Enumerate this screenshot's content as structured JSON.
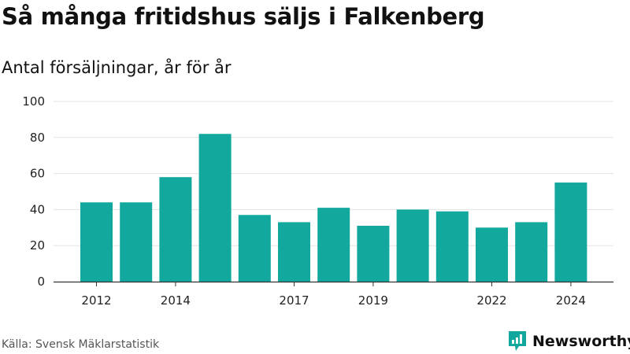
{
  "title": "Så många fritidshus säljs i Falkenberg",
  "subtitle": "Antal försäljningar, år för år",
  "source": "Källa: Svensk Mäklarstatistik",
  "brand": {
    "name": "Newsworthy",
    "color": "#13a89e",
    "icon": "newsworthy-logo-icon"
  },
  "colors": {
    "bar": "#13a89e",
    "grid": "#e3e3e3",
    "axis": "#333333"
  },
  "chart_data": {
    "type": "bar",
    "categories": [
      "2012",
      "2013",
      "2014",
      "2015",
      "2016",
      "2017",
      "2018",
      "2019",
      "2020",
      "2021",
      "2022",
      "2023",
      "2024"
    ],
    "values": [
      44,
      44,
      58,
      82,
      37,
      33,
      41,
      31,
      40,
      39,
      30,
      33,
      55
    ],
    "x_tick_labels": [
      "2012",
      "2014",
      "2017",
      "2019",
      "2022",
      "2024"
    ],
    "y_ticks": [
      0,
      20,
      40,
      60,
      80,
      100
    ],
    "ylim": [
      0,
      100
    ],
    "title": "Så många fritidshus säljs i Falkenberg",
    "subtitle": "Antal försäljningar, år för år",
    "xlabel": "",
    "ylabel": "",
    "grid": true,
    "legend": "none"
  }
}
